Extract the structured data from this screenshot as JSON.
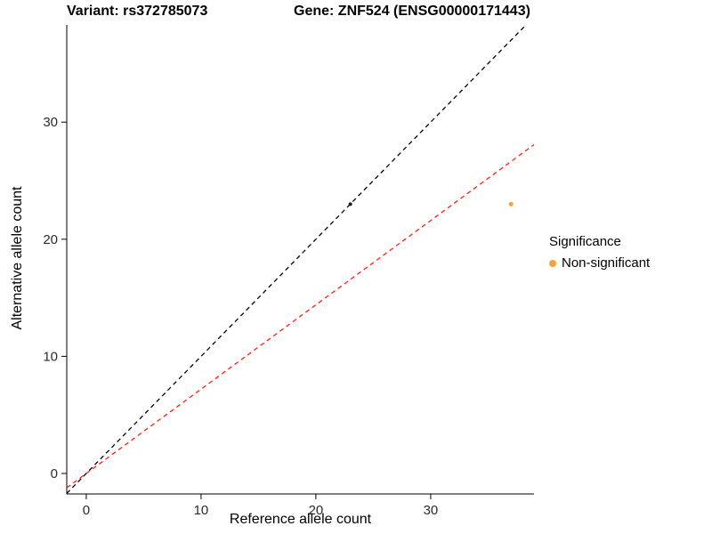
{
  "chart_data": {
    "type": "scatter",
    "title_left": "Variant: rs372785073",
    "title_right": "Gene: ZNF524 (ENSG00000171443)",
    "xlabel": "Reference allele count",
    "ylabel": "Alternative allele count",
    "x_axis": {
      "min": -1.7,
      "max": 39.0,
      "ticks": [
        0,
        10,
        20,
        30
      ]
    },
    "y_axis": {
      "min": -1.75,
      "max": 38.3,
      "ticks": [
        0,
        10,
        20,
        30
      ]
    },
    "points": [
      {
        "x": 23,
        "y": 23,
        "r": 2,
        "color": "#2a1708",
        "series": "on-identity-point"
      },
      {
        "x": 37,
        "y": 23,
        "r": 2.5,
        "color": "#F9A23C",
        "series": "Non-significant"
      }
    ],
    "lines": [
      {
        "name": "identity-line",
        "slope": 1,
        "intercept": 0,
        "color": "#000000",
        "dash": "5 4"
      },
      {
        "name": "ratio-line",
        "slope": 0.72,
        "intercept": 0,
        "color": "#FF1E14",
        "dash": "5 4"
      }
    ],
    "legend": {
      "title": "Significance",
      "items": [
        {
          "label": "Non-significant",
          "color": "#F9A23C"
        }
      ]
    },
    "colors": {
      "axis": "#000000",
      "tick_text": "#2b2b2b"
    }
  }
}
